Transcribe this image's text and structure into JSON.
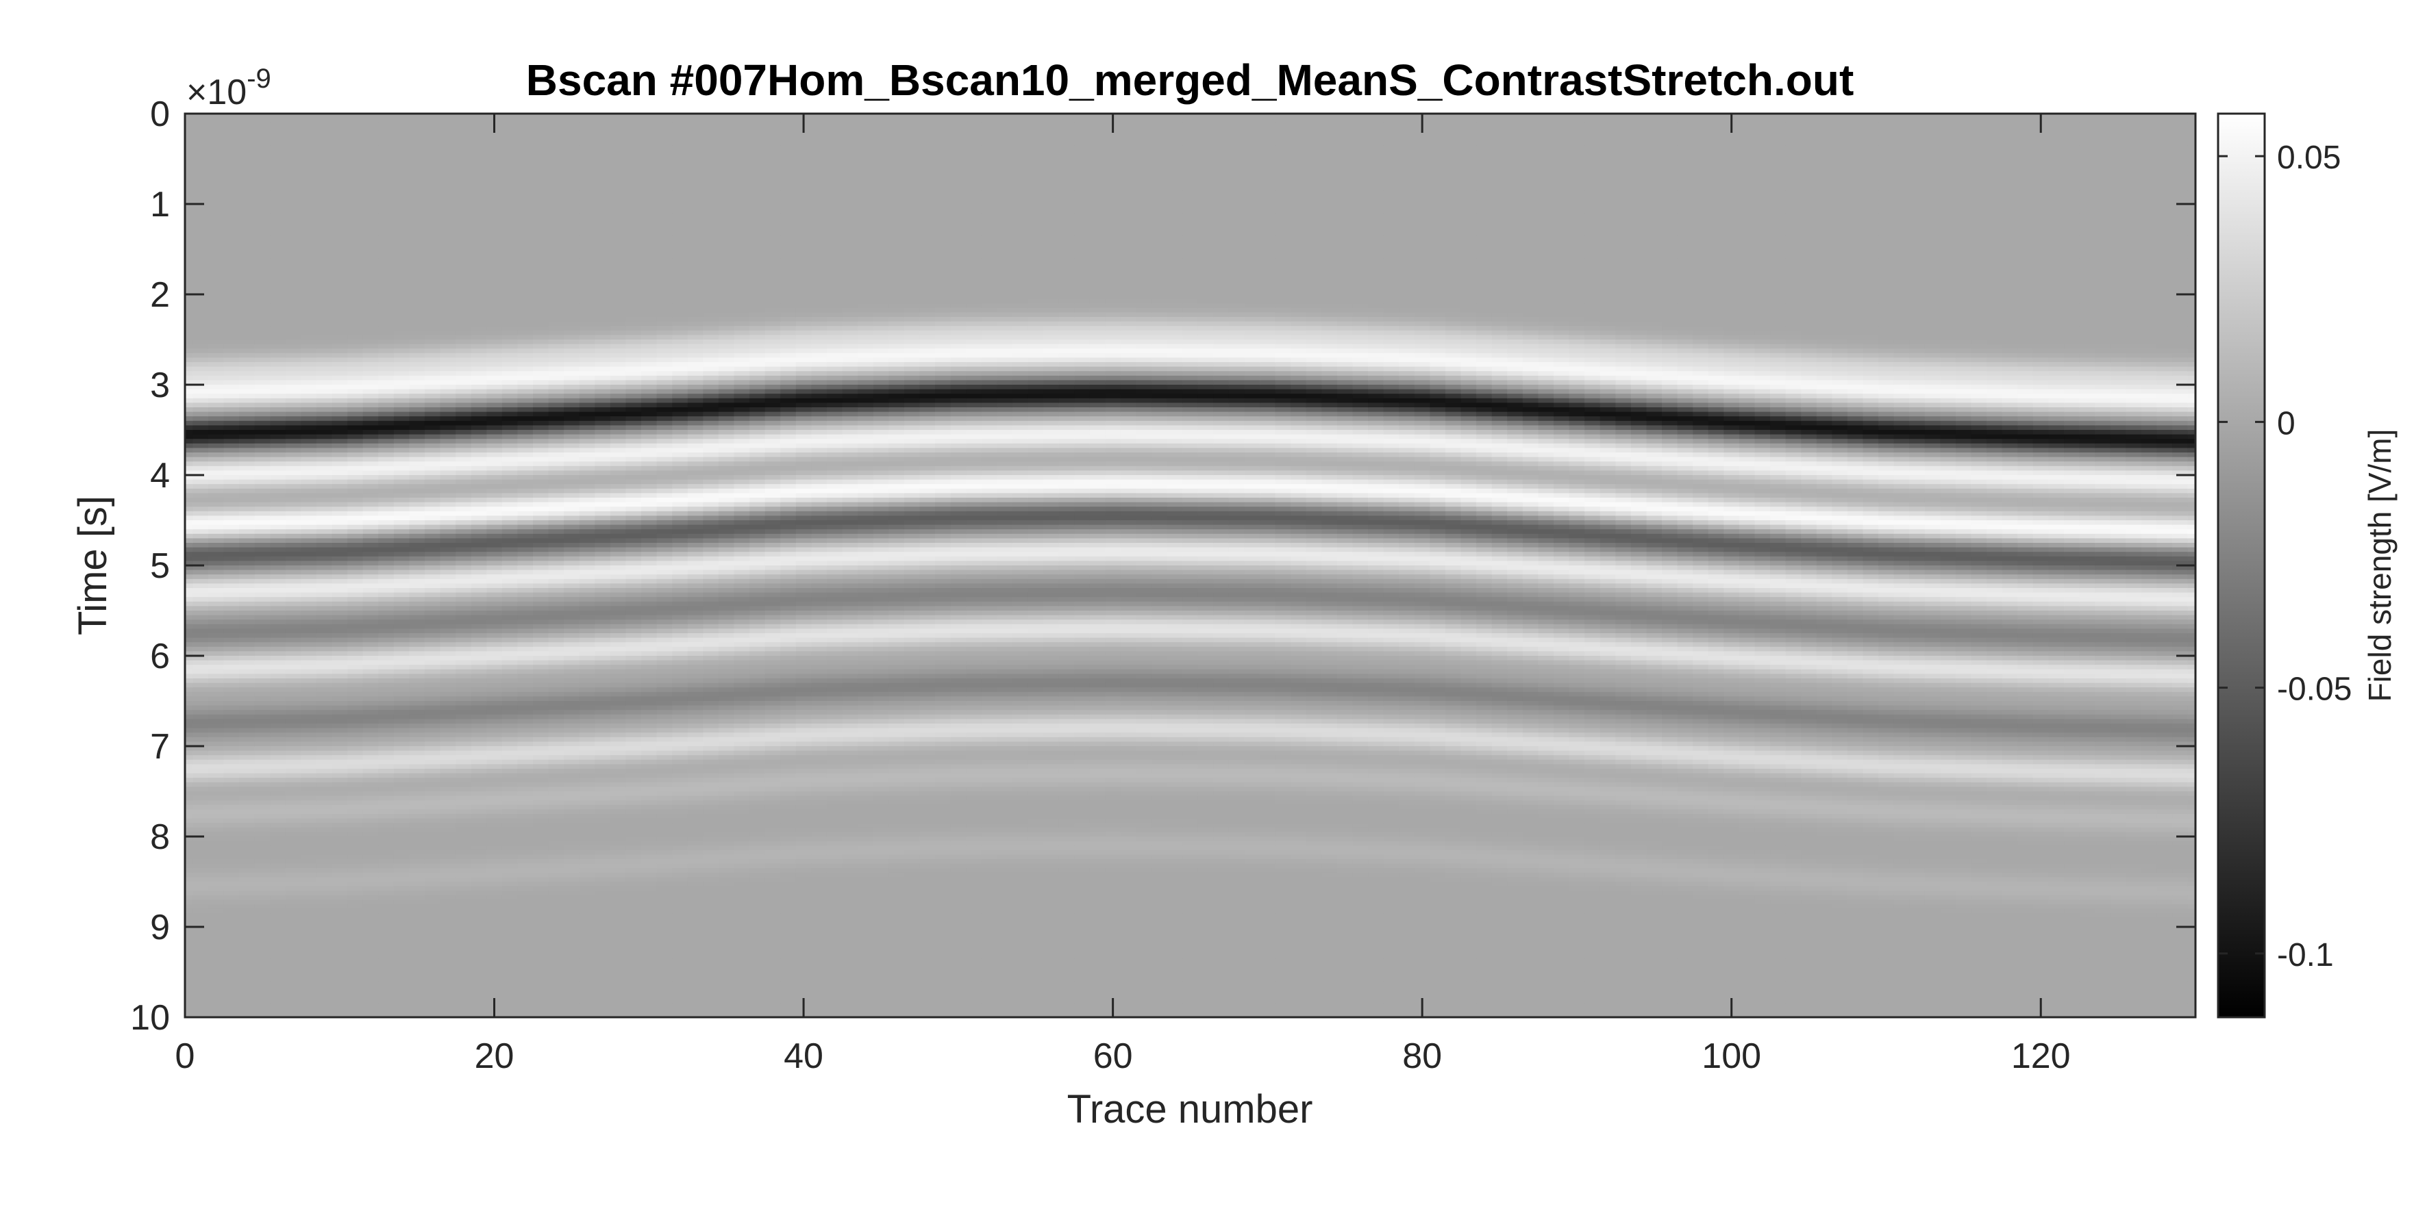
{
  "chart_data": {
    "type": "heatmap",
    "title": "Bscan #007Hom_Bscan10_merged_MeanS_ContrastStretch.out",
    "xlabel": "Trace number",
    "ylabel": "Time [s]",
    "y_multiplier_label": "×10",
    "y_multiplier_exponent": "-9",
    "colorbar_label": "Field strength [V/m]",
    "colormap": "gray",
    "xlim": [
      0,
      130
    ],
    "ylim": [
      0,
      10
    ],
    "y_direction": "reversed",
    "clim": [
      -0.112,
      0.058
    ],
    "x_ticks": [
      "0",
      "20",
      "40",
      "60",
      "80",
      "100",
      "120"
    ],
    "y_ticks": [
      "0",
      "1",
      "2",
      "3",
      "4",
      "5",
      "6",
      "7",
      "8",
      "9",
      "10"
    ],
    "colorbar_ticks": [
      {
        "value": 0.05,
        "label": "0.05"
      },
      {
        "value": 0,
        "label": "0"
      },
      {
        "value": -0.05,
        "label": "-0.05"
      },
      {
        "value": -0.1,
        "label": "-0.1"
      }
    ],
    "background_value": 0.0,
    "reflection_bands": [
      {
        "offset_s": -0.7,
        "value": 0.028
      },
      {
        "offset_s": -0.45,
        "value": 0.05
      },
      {
        "offset_s": 0.0,
        "value": -0.1
      },
      {
        "offset_s": 0.45,
        "value": 0.05
      },
      {
        "offset_s": 1.0,
        "value": 0.055
      },
      {
        "offset_s": 1.35,
        "value": -0.05
      },
      {
        "offset_s": 1.75,
        "value": 0.045
      },
      {
        "offset_s": 2.2,
        "value": -0.025
      },
      {
        "offset_s": 2.6,
        "value": 0.04
      },
      {
        "offset_s": 3.2,
        "value": -0.025
      },
      {
        "offset_s": 3.7,
        "value": 0.035
      },
      {
        "offset_s": 4.2,
        "value": 0.012
      },
      {
        "offset_s": 5.0,
        "value": 0.008
      }
    ],
    "main_reflection_time_s": [
      {
        "x": 0,
        "y": 3.55
      },
      {
        "x": 10,
        "y": 3.5
      },
      {
        "x": 20,
        "y": 3.4
      },
      {
        "x": 30,
        "y": 3.3
      },
      {
        "x": 40,
        "y": 3.18
      },
      {
        "x": 50,
        "y": 3.12
      },
      {
        "x": 60,
        "y": 3.1
      },
      {
        "x": 70,
        "y": 3.12
      },
      {
        "x": 80,
        "y": 3.18
      },
      {
        "x": 90,
        "y": 3.3
      },
      {
        "x": 100,
        "y": 3.42
      },
      {
        "x": 110,
        "y": 3.52
      },
      {
        "x": 120,
        "y": 3.58
      },
      {
        "x": 130,
        "y": 3.62
      }
    ]
  }
}
